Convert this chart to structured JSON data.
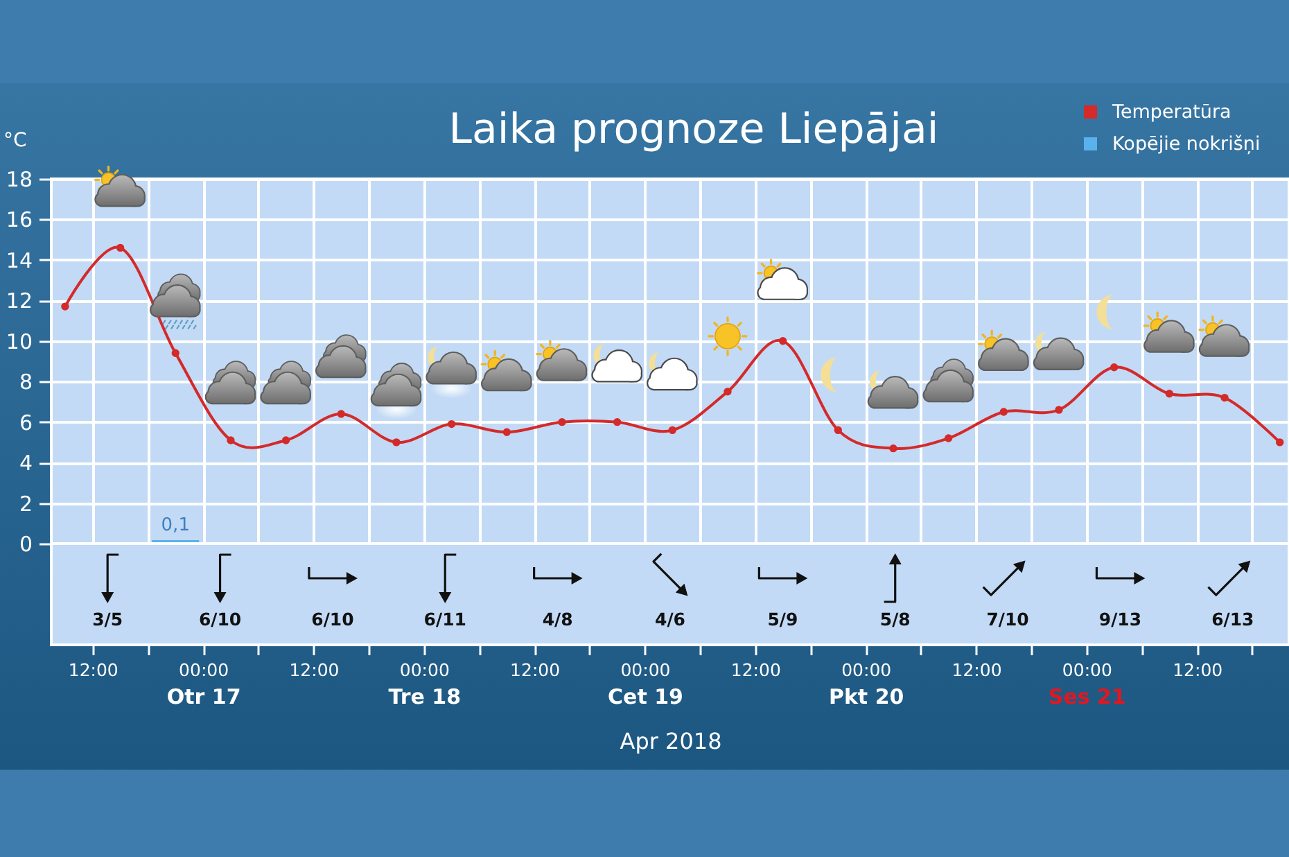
{
  "chart_data": [
    {
      "type": "line",
      "title": "Laika prognoze Liepājai",
      "xlabel": "Apr 2018",
      "ylabel": "°C",
      "series": [
        {
          "name": "Temperatūra",
          "type": "line",
          "color": "#d42a2a",
          "x": [
            "2018-04-16T09:00",
            "2018-04-16T15:00",
            "2018-04-16T21:00",
            "2018-04-17T03:00",
            "2018-04-17T09:00",
            "2018-04-17T15:00",
            "2018-04-17T21:00",
            "2018-04-18T03:00",
            "2018-04-18T09:00",
            "2018-04-18T15:00",
            "2018-04-18T21:00",
            "2018-04-19T03:00",
            "2018-04-19T09:00",
            "2018-04-19T15:00",
            "2018-04-19T21:00",
            "2018-04-20T03:00",
            "2018-04-20T09:00",
            "2018-04-20T15:00",
            "2018-04-20T21:00",
            "2018-04-21T03:00",
            "2018-04-21T09:00",
            "2018-04-21T15:00",
            "2018-04-21T21:00"
          ],
          "values": [
            11.7,
            14.6,
            9.4,
            5.1,
            5.1,
            6.4,
            5.0,
            5.9,
            5.5,
            6.0,
            6.0,
            5.6,
            7.5,
            10.0,
            5.6,
            4.7,
            5.2,
            6.5,
            6.6,
            8.7,
            7.4,
            7.2,
            5.0
          ]
        },
        {
          "name": "Kopējie nokrišņi",
          "type": "bar",
          "color": "#5ab2ec",
          "x": [
            "2018-04-16T21:00"
          ],
          "values": [
            0.1
          ],
          "value_labels": [
            "0,1"
          ]
        }
      ],
      "xlim": [
        "2018-04-16T07:30",
        "2018-04-21T22:00"
      ],
      "xticks": [
        {
          "value": "2018-04-16T12:00",
          "label": "12:00"
        },
        {
          "value": "2018-04-16T18:00",
          "label": null
        },
        {
          "value": "2018-04-17T00:00",
          "label": "00:00\nOtr 17"
        },
        {
          "value": "2018-04-17T06:00",
          "label": null
        },
        {
          "value": "2018-04-17T12:00",
          "label": "12:00"
        },
        {
          "value": "2018-04-17T18:00",
          "label": null
        },
        {
          "value": "2018-04-18T00:00",
          "label": "00:00\nTre 18"
        },
        {
          "value": "2018-04-18T06:00",
          "label": null
        },
        {
          "value": "2018-04-18T12:00",
          "label": "12:00"
        },
        {
          "value": "2018-04-18T18:00",
          "label": null
        },
        {
          "value": "2018-04-19T00:00",
          "label": "00:00\nCet 19"
        },
        {
          "value": "2018-04-19T06:00",
          "label": null
        },
        {
          "value": "2018-04-19T12:00",
          "label": "12:00"
        },
        {
          "value": "2018-04-19T18:00",
          "label": null
        },
        {
          "value": "2018-04-20T00:00",
          "label": "00:00\nPkt 20"
        },
        {
          "value": "2018-04-20T06:00",
          "label": null
        },
        {
          "value": "2018-04-20T12:00",
          "label": "12:00"
        },
        {
          "value": "2018-04-20T18:00",
          "label": null
        },
        {
          "value": "2018-04-21T00:00",
          "label": "00:00\nSes 21"
        },
        {
          "value": "2018-04-21T06:00",
          "label": null
        },
        {
          "value": "2018-04-21T12:00",
          "label": "12:00"
        },
        {
          "value": "2018-04-21T18:00",
          "label": null
        }
      ],
      "ylim": [
        0,
        18
      ],
      "yticks": [
        0,
        2,
        4,
        6,
        8,
        10,
        12,
        14,
        16,
        18
      ],
      "grid": true,
      "legend": "top right",
      "marker": "circle",
      "line_style": "solid"
    },
    {
      "type": "other",
      "annotations": [
        "3/5",
        "6/10",
        "6/10",
        "6/11",
        "4/8",
        "4/6",
        "5/9",
        "5/8",
        "7/10",
        "9/13",
        "6/13"
      ]
    }
  ]
}
